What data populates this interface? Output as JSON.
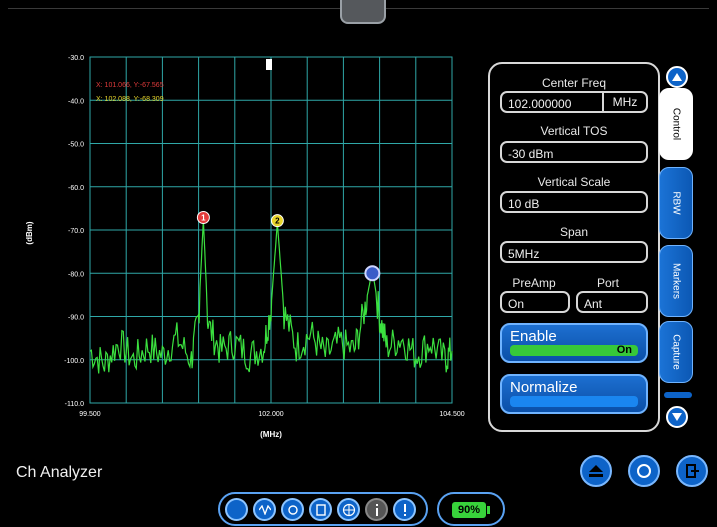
{
  "app": {
    "title": "Ch Analyzer"
  },
  "plot": {
    "y_ticks": [
      "-30.0",
      "-40.0",
      "-50.0",
      "-60.0",
      "-70.0",
      "-80.0",
      "-90.0",
      "-100.0",
      "-110.0"
    ],
    "x_ticks": [
      "99.500",
      "102.000",
      "104.500"
    ],
    "ylabel": "(dBm)",
    "xlabel": "(MHz)",
    "marker1_readout": "X: 101.066, Y:-67.565",
    "marker2_readout": "X: 102.088, Y:-68.309",
    "colors": {
      "grid": "#2fa8a8",
      "trace": "#3be03f",
      "marker1": "#e23b3b",
      "marker2": "#e7d52a",
      "marker3": "#3a5cc8"
    }
  },
  "chart_data": {
    "type": "line",
    "xlabel": "(MHz)",
    "ylabel": "(dBm)",
    "xlim": [
      99.5,
      104.5
    ],
    "ylim": [
      -110,
      -30
    ],
    "series": [
      {
        "x": [
          99.5,
          99.7,
          99.9,
          100.1,
          100.3,
          100.5,
          100.7,
          100.9,
          101.0,
          101.066,
          101.13,
          101.3,
          101.5,
          101.7,
          101.9,
          102.0,
          102.088,
          102.18,
          102.35,
          102.55,
          102.75,
          102.95,
          103.15,
          103.3,
          103.4,
          103.5,
          103.6,
          103.8,
          104.0,
          104.2,
          104.4,
          104.5
        ],
        "values": [
          -98,
          -101,
          -96,
          -100,
          -97,
          -99,
          -95,
          -100,
          -90,
          -67.6,
          -92,
          -98,
          -96,
          -99,
          -97,
          -88,
          -68.3,
          -89,
          -97,
          -94,
          -99,
          -96,
          -98,
          -88,
          -79,
          -90,
          -97,
          -95,
          -99,
          -96,
          -100,
          -98
        ]
      }
    ],
    "markers": [
      {
        "label": "1",
        "x": 101.066,
        "y": -67.565
      },
      {
        "label": "2",
        "x": 102.088,
        "y": -68.309
      },
      {
        "label": "",
        "x": 103.4,
        "y": -80
      }
    ]
  },
  "controls": {
    "center_freq_label": "Center Freq",
    "center_freq_value": "102.000000",
    "center_freq_unit": "MHz",
    "vertical_tos_label": "Vertical TOS",
    "vertical_tos_value": "-30 dBm",
    "vertical_scale_label": "Vertical Scale",
    "vertical_scale_value": "10 dB",
    "span_label": "Span",
    "span_value": "5MHz",
    "preamp_label": "PreAmp",
    "preamp_value": "On",
    "port_label": "Port",
    "port_value": "Ant",
    "enable_label": "Enable",
    "enable_state": "On",
    "normalize_label": "Normalize"
  },
  "side_tabs": [
    {
      "label": "Control",
      "active": true
    },
    {
      "label": "RBW",
      "active": false
    },
    {
      "label": "Markers",
      "active": false
    },
    {
      "label": "Capture",
      "active": false
    }
  ],
  "battery": {
    "label": "90%"
  }
}
